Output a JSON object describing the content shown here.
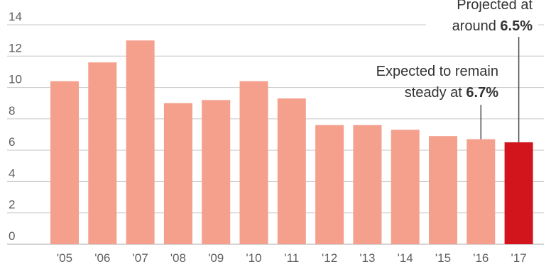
{
  "chart_data": {
    "type": "bar",
    "categories": [
      "'05",
      "'06",
      "'07",
      "'08",
      "'09",
      "'10",
      "'11",
      "'12",
      "'13",
      "'14",
      "'15",
      "'16",
      "'17"
    ],
    "values": [
      10.4,
      11.6,
      13.0,
      9.0,
      9.2,
      10.4,
      9.3,
      7.6,
      7.6,
      7.3,
      6.9,
      6.7,
      6.5
    ],
    "ylim": [
      0,
      14
    ],
    "yticks": [
      "0",
      "2",
      "4",
      "6",
      "8",
      "10",
      "12",
      "14"
    ],
    "grid": true,
    "colors": {
      "bar": "#f4a08d",
      "highlight": "#d2151d",
      "grid": "#c7c7c7",
      "text": "#5f5f5f",
      "annotation_text": "#333333",
      "leader": "#4d4d4d"
    },
    "annotations": [
      {
        "category": "'17",
        "lines": [
          {
            "text": "Projected at",
            "bold": ""
          },
          {
            "text": "around ",
            "bold": "6.5%"
          }
        ]
      },
      {
        "category": "'16",
        "lines": [
          {
            "text": "Expected to remain",
            "bold": ""
          },
          {
            "text": "steady at ",
            "bold": "6.7%"
          }
        ]
      }
    ]
  }
}
